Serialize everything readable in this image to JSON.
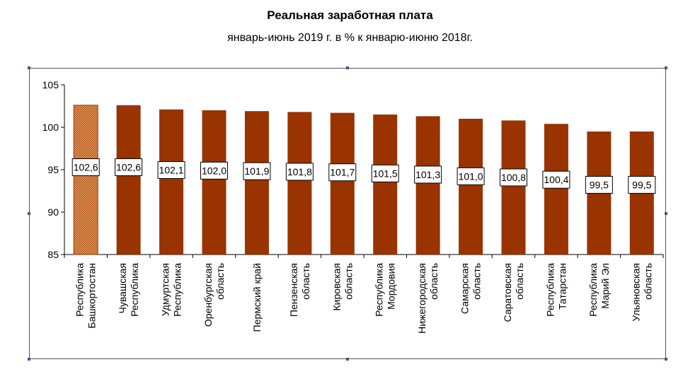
{
  "chart_data": {
    "type": "bar",
    "title": "Реальная заработная плата",
    "subtitle": "январь-июнь 2019 г. в % к январю-июню 2018г.",
    "categories": [
      [
        "Республика",
        "Башкортостан"
      ],
      [
        "Чувашская",
        "Республика"
      ],
      [
        "Удмуртская",
        "Республика"
      ],
      [
        "Оренбургская",
        "область"
      ],
      [
        "Пермский край"
      ],
      [
        "Пензенская",
        "область"
      ],
      [
        "Кировская",
        "область"
      ],
      [
        "Республика",
        "Мордовия"
      ],
      [
        "Нижегородская",
        "область"
      ],
      [
        "Самарская",
        "область"
      ],
      [
        "Саратовская",
        "область"
      ],
      [
        "Республика",
        "Татарстан"
      ],
      [
        "Республика",
        "Марий Эл"
      ],
      [
        "Ульяновская",
        "область"
      ]
    ],
    "values": [
      102.6,
      102.6,
      102.1,
      102.0,
      101.9,
      101.8,
      101.7,
      101.5,
      101.3,
      101.0,
      100.8,
      100.4,
      99.5,
      99.5
    ],
    "value_labels": [
      "102,6",
      "102,6",
      "102,1",
      "102,0",
      "101,9",
      "101,8",
      "101,7",
      "101,5",
      "101,3",
      "101,0",
      "100,8",
      "100,4",
      "99,5",
      "99,5"
    ],
    "highlight_index": 0,
    "ylim": [
      85,
      105
    ],
    "yticks": [
      85,
      90,
      95,
      100,
      105
    ],
    "grid": false,
    "colors": {
      "bar": "#993300",
      "highlight_fill": "#e8a060",
      "highlight_stroke": "#993300",
      "label_box": "#ffffff"
    }
  }
}
